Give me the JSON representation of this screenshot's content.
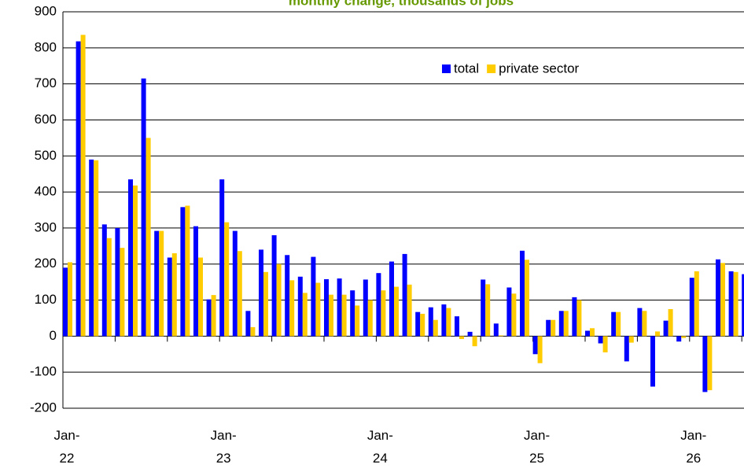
{
  "chart_data": {
    "type": "bar",
    "title": "monthly change, thousands of jobs",
    "categories": [
      "Jan-\n22",
      null,
      null,
      null,
      null,
      null,
      null,
      null,
      null,
      null,
      null,
      null,
      "Jan-\n23",
      null,
      null,
      null,
      null,
      null,
      null,
      null,
      null,
      null,
      null,
      null,
      "Jan-\n24",
      null,
      null,
      null,
      null,
      null,
      null,
      null,
      null,
      null,
      null,
      null,
      "Jan-\n25",
      null,
      null,
      null,
      null,
      null,
      null,
      null,
      null,
      null,
      null,
      null,
      "Jan-\n26",
      null,
      null,
      null,
      null
    ],
    "series": [
      {
        "name": "total",
        "color": "#0000ff",
        "values": [
          190,
          818,
          490,
          310,
          300,
          435,
          715,
          292,
          218,
          358,
          305,
          102,
          435,
          292,
          70,
          240,
          280,
          225,
          165,
          220,
          158,
          160,
          127,
          157,
          175,
          207,
          228,
          67,
          80,
          88,
          55,
          12,
          157,
          35,
          135,
          237,
          -50,
          45,
          70,
          108,
          15,
          -20,
          67,
          -70,
          78,
          -140,
          43,
          -15,
          162,
          -155,
          213,
          180,
          172
        ]
      },
      {
        "name": "private sector",
        "color": "#ffcc00",
        "values": [
          205,
          836,
          488,
          272,
          245,
          418,
          550,
          292,
          230,
          362,
          218,
          114,
          316,
          236,
          25,
          178,
          200,
          155,
          120,
          148,
          115,
          115,
          85,
          100,
          127,
          137,
          143,
          62,
          45,
          78,
          -8,
          -28,
          144,
          2,
          118,
          212,
          -75,
          45,
          70,
          100,
          22,
          -45,
          67,
          -18,
          70,
          13,
          75,
          -5,
          180,
          -150,
          203,
          178,
          120
        ]
      }
    ],
    "ylim": [
      -200,
      900
    ],
    "yticks": [
      -200,
      -100,
      0,
      100,
      200,
      300,
      400,
      500,
      600,
      700,
      800,
      900
    ],
    "grid": true,
    "legend": "top-right"
  }
}
